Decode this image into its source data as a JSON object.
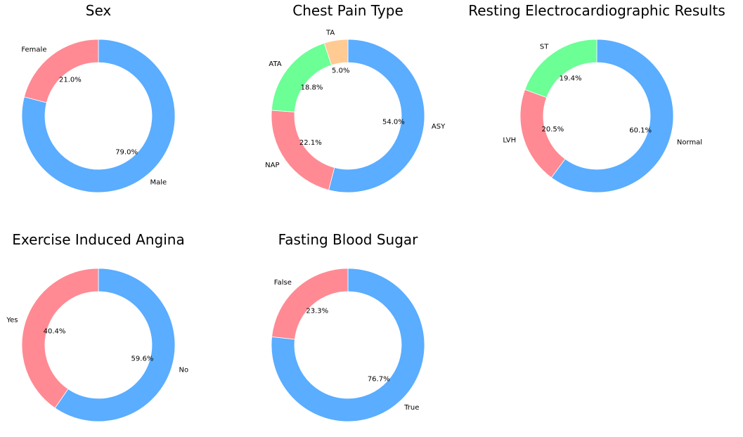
{
  "colors": {
    "blue": "#5aadff",
    "red": "#ff8a93",
    "green": "#6bff96",
    "orange": "#ffcb93"
  },
  "chart_data": [
    {
      "type": "pie",
      "style": "donut",
      "title": "Sex",
      "slices": [
        {
          "label": "Male",
          "value": 79.0,
          "pct_text": "79.0%",
          "color": "blue"
        },
        {
          "label": "Female",
          "value": 21.0,
          "pct_text": "21.0%",
          "color": "red"
        }
      ]
    },
    {
      "type": "pie",
      "style": "donut",
      "title": "Chest Pain Type",
      "slices": [
        {
          "label": "ASY",
          "value": 54.0,
          "pct_text": "54.0%",
          "color": "blue"
        },
        {
          "label": "NAP",
          "value": 22.1,
          "pct_text": "22.1%",
          "color": "red"
        },
        {
          "label": "ATA",
          "value": 18.8,
          "pct_text": "18.8%",
          "color": "green"
        },
        {
          "label": "TA",
          "value": 5.0,
          "pct_text": "5.0%",
          "color": "orange"
        }
      ]
    },
    {
      "type": "pie",
      "style": "donut",
      "title": "Resting Electrocardiographic Results",
      "slices": [
        {
          "label": "Normal",
          "value": 60.1,
          "pct_text": "60.1%",
          "color": "blue"
        },
        {
          "label": "LVH",
          "value": 20.5,
          "pct_text": "20.5%",
          "color": "red"
        },
        {
          "label": "ST",
          "value": 19.4,
          "pct_text": "19.4%",
          "color": "green"
        }
      ]
    },
    {
      "type": "pie",
      "style": "donut",
      "title": "Exercise Induced Angina",
      "slices": [
        {
          "label": "No",
          "value": 59.6,
          "pct_text": "59.6%",
          "color": "blue"
        },
        {
          "label": "Yes",
          "value": 40.4,
          "pct_text": "40.4%",
          "color": "red"
        }
      ]
    },
    {
      "type": "pie",
      "style": "donut",
      "title": "Fasting Blood Sugar",
      "slices": [
        {
          "label": "True",
          "value": 76.7,
          "pct_text": "76.7%",
          "color": "blue"
        },
        {
          "label": "False",
          "value": 23.3,
          "pct_text": "23.3%",
          "color": "red"
        }
      ]
    }
  ]
}
